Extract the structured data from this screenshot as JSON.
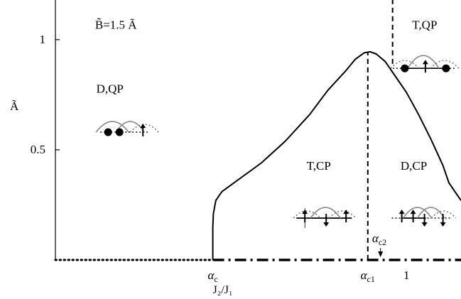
{
  "chart_data": {
    "type": "line",
    "title": "",
    "xlabel": "J₂/J₁",
    "ylabel": "Ã",
    "xlim": [
      0.42,
      1.09
    ],
    "ylim": [
      0,
      1.18
    ],
    "grid": false,
    "legend": "none",
    "x_ticks": [
      {
        "value": 0.68,
        "label": "α_c",
        "italic_base": "α",
        "sub": "c"
      },
      {
        "value": 0.936,
        "label": "α_c1",
        "italic_base": "α",
        "sub": "c1"
      },
      {
        "value": 1.0,
        "label": "1"
      }
    ],
    "y_ticks": [
      {
        "value": 0.5,
        "label": "0.5"
      },
      {
        "value": 1.0,
        "label": "1"
      }
    ],
    "series": [
      {
        "style": "solid",
        "x": [
          0.68,
          0.68,
          0.681,
          0.685,
          0.695,
          0.72,
          0.76,
          0.8,
          0.84,
          0.87,
          0.9,
          0.915,
          0.93,
          0.94,
          0.95,
          0.965,
          0.98,
          1.0,
          1.02,
          1.04,
          1.06,
          1.07,
          1.09
        ],
        "y": [
          0.0,
          0.15,
          0.21,
          0.27,
          0.31,
          0.36,
          0.44,
          0.54,
          0.66,
          0.77,
          0.86,
          0.91,
          0.94,
          0.945,
          0.935,
          0.9,
          0.84,
          0.76,
          0.66,
          0.55,
          0.43,
          0.35,
          0.27
        ]
      },
      {
        "style": "dashed",
        "x": [
          0.936,
          0.936
        ],
        "y": [
          0.0,
          0.945
        ]
      },
      {
        "style": "dashed",
        "x": [
          0.977,
          0.977
        ],
        "y": [
          0.89,
          1.18
        ]
      },
      {
        "style": "dotted",
        "x": [
          0.42,
          0.68
        ],
        "y": [
          0.0,
          0.0
        ]
      },
      {
        "style": "dash-dot",
        "x": [
          0.68,
          1.09
        ],
        "y": [
          0.0,
          0.0
        ]
      }
    ],
    "annotations": [
      {
        "text": "B̃=1.5 Ã",
        "x": 0.52,
        "y": 1.05
      },
      {
        "text": "D,QP",
        "x": 0.51,
        "y": 0.76
      },
      {
        "text": "T,QP",
        "x": 1.03,
        "y": 1.05
      },
      {
        "text": "T,CP",
        "x": 0.855,
        "y": 0.41
      },
      {
        "text": "D,CP",
        "x": 1.012,
        "y": 0.41
      },
      {
        "text": "α_c2",
        "italic_base": "α",
        "sub": "c2",
        "x": 0.955,
        "y": 0.08,
        "arrow_to": [
          0.957,
          0.0
        ]
      }
    ],
    "insets": [
      {
        "state": "D,QP",
        "x": 0.52,
        "y": 0.58
      },
      {
        "state": "T,QP",
        "x": 1.03,
        "y": 0.87
      },
      {
        "state": "T,CP",
        "x": 0.865,
        "y": 0.19
      },
      {
        "state": "D,CP",
        "x": 1.025,
        "y": 0.19
      }
    ]
  }
}
